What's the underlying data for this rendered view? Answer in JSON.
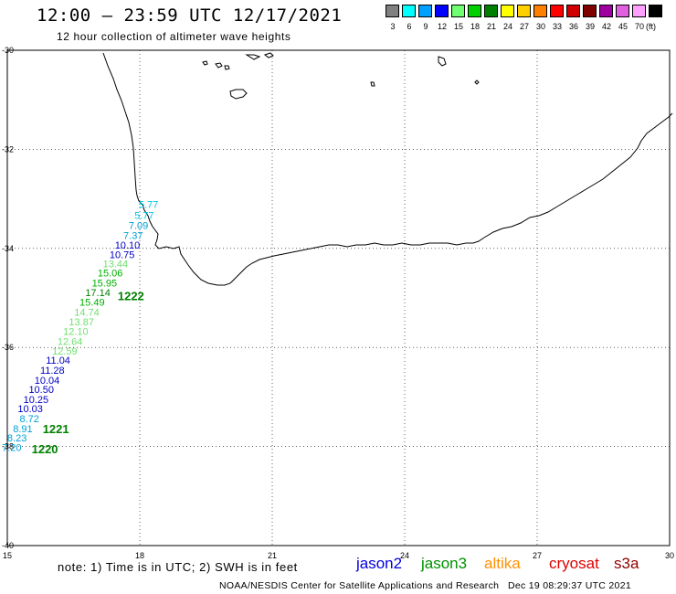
{
  "header": {
    "title": "12:00 – 23:59 UTC 12/17/2021",
    "subtitle": "12 hour collection of altimeter wave heights"
  },
  "legend": {
    "unit": "(ft)",
    "bins": [
      {
        "label": "3",
        "color": "#808080"
      },
      {
        "label": "6",
        "color": "#00ffff"
      },
      {
        "label": "9",
        "color": "#00a0ff"
      },
      {
        "label": "12",
        "color": "#0000ff"
      },
      {
        "label": "15",
        "color": "#70ff70"
      },
      {
        "label": "18",
        "color": "#00d000"
      },
      {
        "label": "21",
        "color": "#008000"
      },
      {
        "label": "24",
        "color": "#ffff00"
      },
      {
        "label": "27",
        "color": "#ffd000"
      },
      {
        "label": "30",
        "color": "#ff8000"
      },
      {
        "label": "33",
        "color": "#ff0000"
      },
      {
        "label": "36",
        "color": "#d00000"
      },
      {
        "label": "39",
        "color": "#800000"
      },
      {
        "label": "42",
        "color": "#a000a0"
      },
      {
        "label": "45",
        "color": "#e060e0"
      },
      {
        "label": "70",
        "color": "#ffa0ff"
      },
      {
        "label": "",
        "color": "#000000"
      }
    ]
  },
  "axes": {
    "lon_ticks": [
      "15",
      "18",
      "21",
      "24",
      "27",
      "30"
    ],
    "lat_ticks": [
      "-30",
      "-32",
      "-34",
      "-36",
      "-38",
      "-40"
    ],
    "lon_range": [
      15,
      30
    ],
    "lat_range": [
      -40,
      -30
    ]
  },
  "track": {
    "points": [
      {
        "text": "5.77",
        "lon": 18.2,
        "lat": -33.18,
        "color": "#00c8e8"
      },
      {
        "text": "5.77",
        "lon": 18.1,
        "lat": -33.4,
        "color": "#00c8e8"
      },
      {
        "text": "7.09",
        "lon": 17.97,
        "lat": -33.61,
        "color": "#00a0d8"
      },
      {
        "text": "7.37",
        "lon": 17.85,
        "lat": -33.81,
        "color": "#00a0d8"
      },
      {
        "text": "10.10",
        "lon": 17.72,
        "lat": -34.0,
        "color": "#0000c8"
      },
      {
        "text": "10.75",
        "lon": 17.6,
        "lat": -34.2,
        "color": "#0000c8"
      },
      {
        "text": "13.44",
        "lon": 17.45,
        "lat": -34.38,
        "color": "#70e070"
      },
      {
        "text": "15.06",
        "lon": 17.33,
        "lat": -34.57,
        "color": "#00b000"
      },
      {
        "text": "15.95",
        "lon": 17.2,
        "lat": -34.77,
        "color": "#00b000"
      },
      {
        "text": "17.14",
        "lon": 17.05,
        "lat": -34.96,
        "color": "#008000"
      },
      {
        "text": "15.49",
        "lon": 16.92,
        "lat": -35.16,
        "color": "#00b000"
      },
      {
        "text": "14.74",
        "lon": 16.8,
        "lat": -35.36,
        "color": "#70e070"
      },
      {
        "text": "13.87",
        "lon": 16.68,
        "lat": -35.55,
        "color": "#70e070"
      },
      {
        "text": "12.10",
        "lon": 16.55,
        "lat": -35.75,
        "color": "#70e070"
      },
      {
        "text": "12.64",
        "lon": 16.42,
        "lat": -35.95,
        "color": "#70e070"
      },
      {
        "text": "12.59",
        "lon": 16.3,
        "lat": -36.14,
        "color": "#70e070"
      },
      {
        "text": "11.04",
        "lon": 16.15,
        "lat": -36.33,
        "color": "#0000c8"
      },
      {
        "text": "11.28",
        "lon": 16.02,
        "lat": -36.53,
        "color": "#0000c8"
      },
      {
        "text": "10.04",
        "lon": 15.9,
        "lat": -36.73,
        "color": "#0000c8"
      },
      {
        "text": "10.50",
        "lon": 15.77,
        "lat": -36.92,
        "color": "#0000c8"
      },
      {
        "text": "10.25",
        "lon": 15.65,
        "lat": -37.12,
        "color": "#0000c8"
      },
      {
        "text": "10.03",
        "lon": 15.52,
        "lat": -37.31,
        "color": "#0000c8"
      },
      {
        "text": "8.72",
        "lon": 15.5,
        "lat": -37.51,
        "color": "#00a0d8"
      },
      {
        "text": "8.91",
        "lon": 15.35,
        "lat": -37.71,
        "color": "#00a0d8"
      },
      {
        "text": "8.23",
        "lon": 15.22,
        "lat": -37.9,
        "color": "#00a0d8"
      },
      {
        "text": "7.20",
        "lon": 15.1,
        "lat": -38.09,
        "color": "#00a0d8"
      }
    ],
    "time_labels": [
      {
        "text": "1222",
        "lon": 17.8,
        "lat": -35.05
      },
      {
        "text": "1221",
        "lon": 16.1,
        "lat": -37.73
      },
      {
        "text": "1220",
        "lon": 15.85,
        "lat": -38.14
      }
    ]
  },
  "footer": {
    "note": "note: 1) Time is in UTC; 2) SWH is in feet",
    "satellites": [
      {
        "name": "jason2",
        "color": "#0000e0"
      },
      {
        "name": "jason3",
        "color": "#009000"
      },
      {
        "name": "altika",
        "color": "#ff9000"
      },
      {
        "name": "cryosat",
        "color": "#e00000"
      },
      {
        "name": "s3a",
        "color": "#900000"
      }
    ],
    "credit": "NOAA/NESDIS Center for Satellite Applications and Research   Dec 19 08:29:37 UTC 2021"
  }
}
